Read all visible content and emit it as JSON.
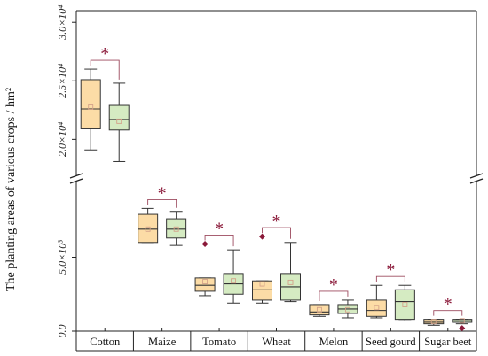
{
  "chart_data": {
    "type": "box",
    "ylabel": "The planting areas of various crops / hm²",
    "categories": [
      "Cotton",
      "Maize",
      "Tomato",
      "Wheat",
      "Melon",
      "Seed gourd",
      "Sugar beet"
    ],
    "y_axis_break": true,
    "y_segments": [
      {
        "name": "lower",
        "ylim": [
          0,
          10000
        ],
        "ticks": [
          {
            "value": 0,
            "label": "0.0"
          },
          {
            "value": 5000,
            "label": "5.0×10³"
          }
        ]
      },
      {
        "name": "upper",
        "ylim": [
          17000,
          31000
        ],
        "ticks": [
          {
            "value": 20000,
            "label": "2.0×10⁴"
          },
          {
            "value": 25000,
            "label": "2.5×10⁴"
          },
          {
            "value": 30000,
            "label": "3.0×10⁴"
          }
        ]
      }
    ],
    "series_colors": [
      "#fcdca6",
      "#d5ebc2"
    ],
    "box_stroke": "#333333",
    "mean_marker_color": "#d4a28a",
    "outlier_color": "#8b1a3a",
    "significance_color": "#9c4a5e",
    "groups": [
      {
        "category": "Cotton",
        "significance": "*",
        "boxes": [
          {
            "min": 19100,
            "q1": 20900,
            "median": 22600,
            "q3": 25100,
            "max": 26000,
            "mean": 22750,
            "outliers": []
          },
          {
            "min": 18100,
            "q1": 20800,
            "median": 21700,
            "q3": 22900,
            "max": 24800,
            "mean": 21550,
            "outliers": []
          }
        ]
      },
      {
        "category": "Maize",
        "significance": "*",
        "boxes": [
          {
            "min": 6000,
            "q1": 6000,
            "median": 6900,
            "q3": 7900,
            "max": 8300,
            "mean": 6900,
            "outliers": []
          },
          {
            "min": 5800,
            "q1": 6300,
            "median": 6900,
            "q3": 7600,
            "max": 8100,
            "mean": 6900,
            "outliers": []
          }
        ]
      },
      {
        "category": "Tomato",
        "significance": "*",
        "boxes": [
          {
            "min": 2400,
            "q1": 2700,
            "median": 3100,
            "q3": 3600,
            "max": 3600,
            "mean": 3350,
            "outliers": [
              5900
            ]
          },
          {
            "min": 1900,
            "q1": 2500,
            "median": 3200,
            "q3": 3900,
            "max": 5500,
            "mean": 3400,
            "outliers": []
          }
        ]
      },
      {
        "category": "Wheat",
        "significance": "*",
        "boxes": [
          {
            "min": 1900,
            "q1": 2100,
            "median": 2800,
            "q3": 3400,
            "max": 3400,
            "mean": 3200,
            "outliers": [
              6400
            ]
          },
          {
            "min": 2000,
            "q1": 2100,
            "median": 3000,
            "q3": 3900,
            "max": 6000,
            "mean": 3300,
            "outliers": []
          }
        ]
      },
      {
        "category": "Melon",
        "significance": "*",
        "boxes": [
          {
            "min": 1000,
            "q1": 1100,
            "median": 1300,
            "q3": 1800,
            "max": 1800,
            "mean": 1450,
            "outliers": []
          },
          {
            "min": 900,
            "q1": 1200,
            "median": 1500,
            "q3": 1800,
            "max": 2100,
            "mean": 1450,
            "outliers": []
          }
        ]
      },
      {
        "category": "Seed gourd",
        "significance": "*",
        "boxes": [
          {
            "min": 900,
            "q1": 1000,
            "median": 1400,
            "q3": 2100,
            "max": 3100,
            "mean": 1600,
            "outliers": []
          },
          {
            "min": 700,
            "q1": 800,
            "median": 2000,
            "q3": 2800,
            "max": 3100,
            "mean": 1800,
            "outliers": []
          }
        ]
      },
      {
        "category": "Sugar beet",
        "significance": "*",
        "boxes": [
          {
            "min": 400,
            "q1": 500,
            "median": 600,
            "q3": 800,
            "max": 800,
            "mean": 650,
            "outliers": []
          },
          {
            "min": 500,
            "q1": 600,
            "median": 700,
            "q3": 800,
            "max": 800,
            "mean": 700,
            "outliers": [
              200
            ]
          }
        ]
      }
    ]
  }
}
